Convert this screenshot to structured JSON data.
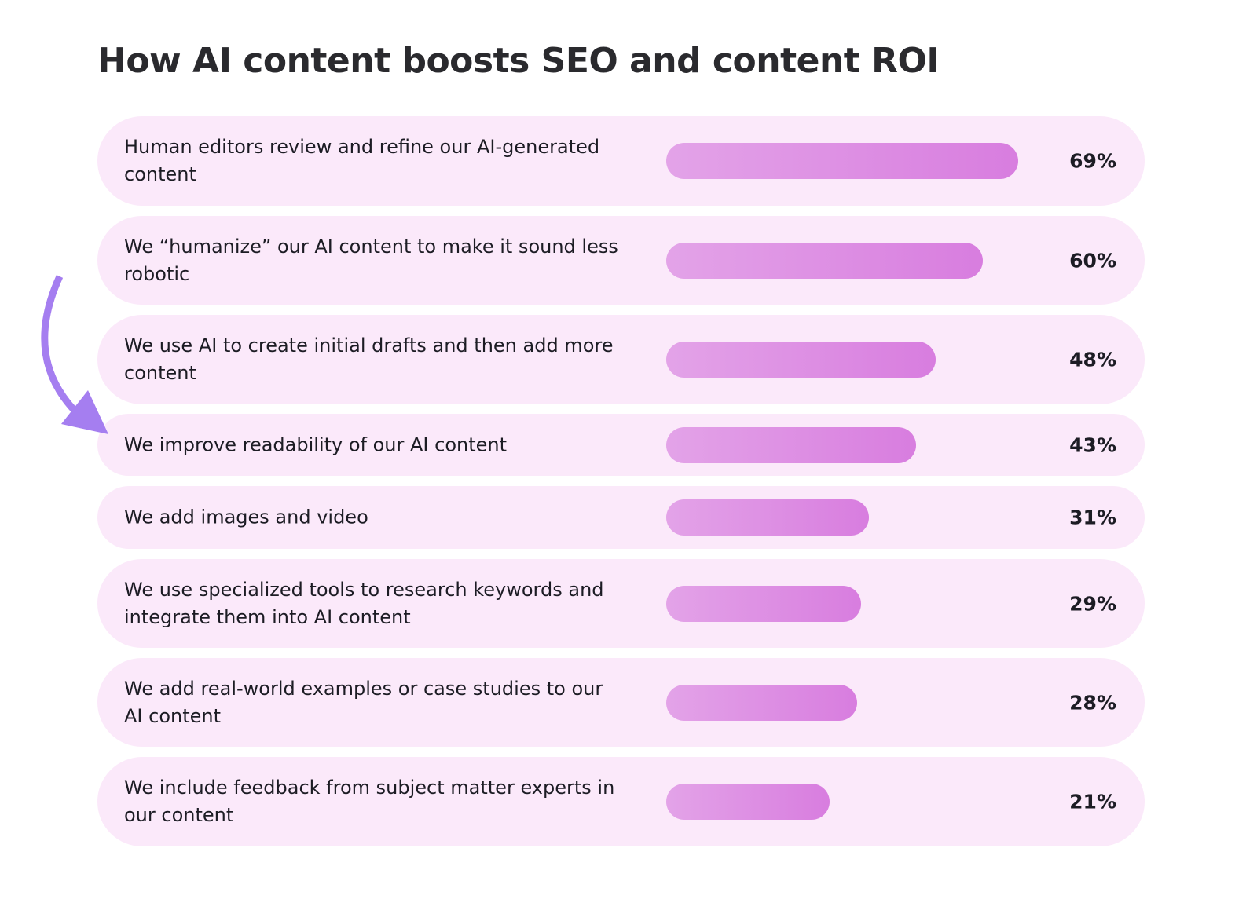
{
  "chart_data": {
    "type": "bar",
    "orientation": "horizontal",
    "title": "How AI content boosts SEO and content ROI",
    "categories": [
      "Human editors review and refine our AI-generated content",
      "We “humanize” our AI content to make it sound less robotic",
      "We use AI to create initial drafts and then add more content",
      "We improve readability of our AI content",
      "We add images and video",
      "We use specialized tools to research keywords and integrate them into AI content",
      "We add real-world examples or case studies to our AI content",
      "We include feedback from subject matter experts in our content"
    ],
    "values": [
      69,
      60,
      48,
      43,
      31,
      29,
      28,
      21
    ],
    "value_labels": [
      "69%",
      "60%",
      "48%",
      "43%",
      "31%",
      "29%",
      "28%",
      "21%"
    ],
    "unit": "%",
    "highlighted_category": "We improve readability of our AI content",
    "colors": {
      "row_bg": "#fbe9fa",
      "bar_start": "#e3a3e8",
      "bar_end": "#d87ddf",
      "arrow": "#a57ef0"
    }
  }
}
